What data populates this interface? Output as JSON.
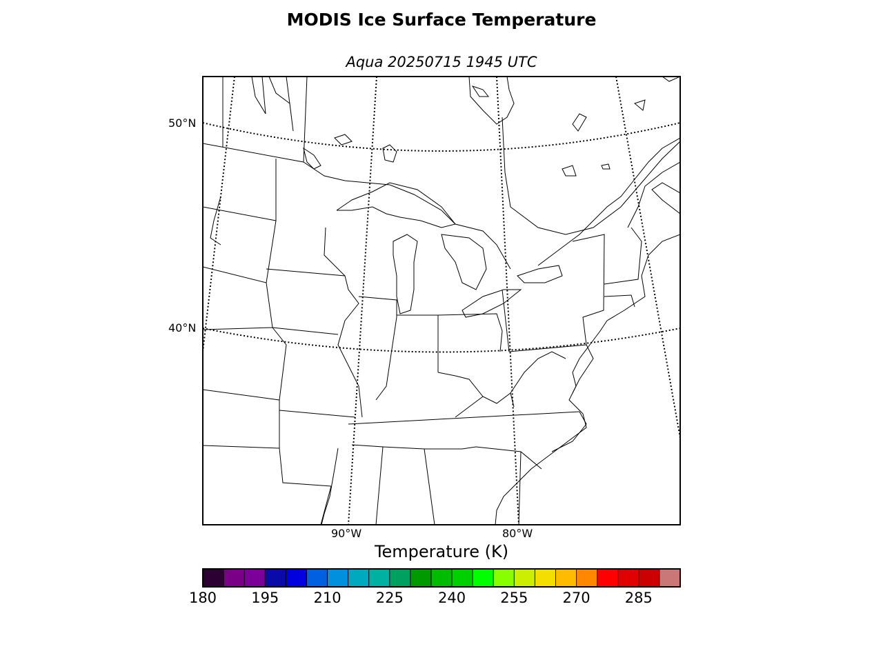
{
  "title": "MODIS Ice Surface Temperature",
  "subtitle": "Aqua 20250715 1945 UTC",
  "graticule": {
    "lat_labels": [
      "50°N",
      "40°N"
    ],
    "lon_labels": [
      "90°W",
      "80°W"
    ]
  },
  "colorbar": {
    "label": "Temperature (K)",
    "min": 180,
    "max": 295,
    "step": 5,
    "tick_labels": [
      "180",
      "195",
      "210",
      "225",
      "240",
      "255",
      "270",
      "285"
    ],
    "colors": [
      "#2c0033",
      "#7a0088",
      "#7a0099",
      "#0a0aa8",
      "#0000e0",
      "#0060e0",
      "#0090dd",
      "#00a8c0",
      "#00b0a0",
      "#00a060",
      "#009900",
      "#00bb00",
      "#00d000",
      "#00ff00",
      "#88ff00",
      "#ccee00",
      "#f4dd00",
      "#ffbb00",
      "#ff8800",
      "#ff0000",
      "#e00000",
      "#cc0000",
      "#cc7777"
    ]
  }
}
